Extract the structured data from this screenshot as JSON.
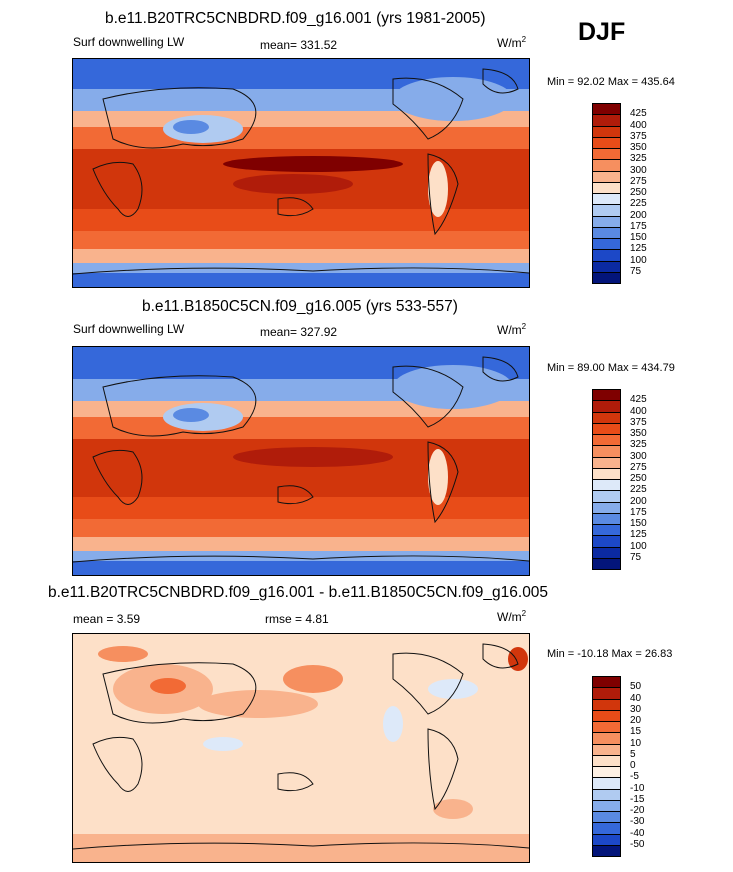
{
  "season": "DJF",
  "panels": [
    {
      "title": "b.e11.B20TRC5CNBDRD.f09_g16.001 (yrs 1981-2005)",
      "variable": "Surf downwelling LW",
      "mean_label": "mean= 331.52",
      "rmse_label": "",
      "units": "W/m",
      "units_exp": "2",
      "minmax": "Min =  92.02 Max = 435.64",
      "colorbar": {
        "levels": [
          "425",
          "400",
          "375",
          "350",
          "325",
          "300",
          "275",
          "250",
          "225",
          "200",
          "175",
          "150",
          "125",
          "100",
          "75"
        ],
        "colors": [
          "#7f0000",
          "#b01c0a",
          "#d1360c",
          "#e84c18",
          "#f26a35",
          "#f68f5f",
          "#f9b38d",
          "#fde0c8",
          "#dde9f9",
          "#b0cbf1",
          "#86acea",
          "#5a8ae2",
          "#3568da",
          "#1c48c7",
          "#0b2aa2",
          "#03157a"
        ]
      }
    },
    {
      "title": "b.e11.B1850C5CN.f09_g16.005 (yrs 533-557)",
      "variable": "Surf downwelling LW",
      "mean_label": "mean= 327.92",
      "rmse_label": "",
      "units": "W/m",
      "units_exp": "2",
      "minmax": "Min =  89.00 Max = 434.79",
      "colorbar": {
        "levels": [
          "425",
          "400",
          "375",
          "350",
          "325",
          "300",
          "275",
          "250",
          "225",
          "200",
          "175",
          "150",
          "125",
          "100",
          "75"
        ],
        "colors": [
          "#7f0000",
          "#b01c0a",
          "#d1360c",
          "#e84c18",
          "#f26a35",
          "#f68f5f",
          "#f9b38d",
          "#fde0c8",
          "#dde9f9",
          "#b0cbf1",
          "#86acea",
          "#5a8ae2",
          "#3568da",
          "#1c48c7",
          "#0b2aa2",
          "#03157a"
        ]
      }
    },
    {
      "title": "b.e11.B20TRC5CNBDRD.f09_g16.001 - b.e11.B1850C5CN.f09_g16.005",
      "variable": "",
      "mean_label": "mean =    3.59",
      "rmse_label": "rmse =   4.81",
      "units": "W/m",
      "units_exp": "2",
      "minmax": "Min = -10.18 Max =  26.83",
      "colorbar": {
        "levels": [
          "50",
          "40",
          "30",
          "20",
          "15",
          "10",
          "5",
          "0",
          "-5",
          "-10",
          "-15",
          "-20",
          "-30",
          "-40",
          "-50"
        ],
        "colors": [
          "#7f0000",
          "#b01c0a",
          "#d1360c",
          "#e84c18",
          "#f26a35",
          "#f68f5f",
          "#f9b38d",
          "#fde0c8",
          "#fdf0e4",
          "#dde9f9",
          "#b0cbf1",
          "#86acea",
          "#5a8ae2",
          "#3568da",
          "#1c48c7",
          "#03157a"
        ]
      }
    }
  ]
}
